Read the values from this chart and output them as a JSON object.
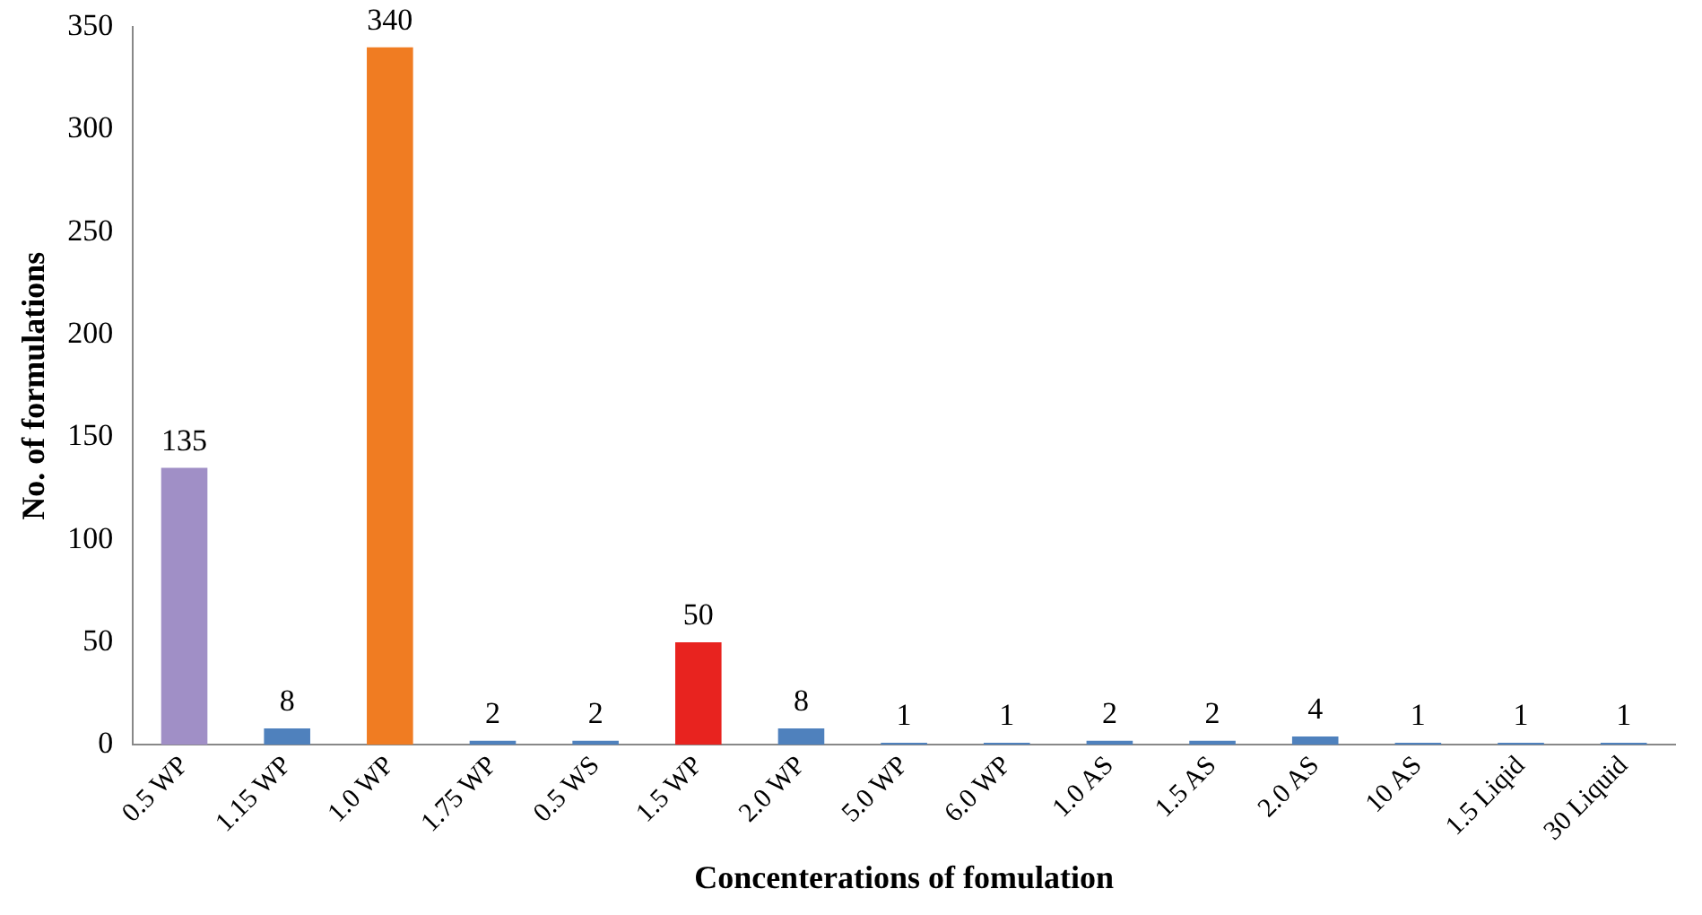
{
  "chart_data": {
    "type": "bar",
    "xlabel": "Concenterations of fomulation",
    "ylabel": "No. of formulations",
    "categories": [
      "0.5 WP",
      "1.15 WP",
      "1.0 WP",
      "1.75 WP",
      "0.5 WS",
      "1.5 WP",
      "2.0 WP",
      "5.0 WP",
      "6.0 WP",
      "1.0 AS",
      "1.5 AS",
      "2.0 AS",
      "10 AS",
      "1.5 Liqid",
      "30 Liquid"
    ],
    "values": [
      135,
      8,
      340,
      2,
      2,
      50,
      8,
      1,
      1,
      2,
      2,
      4,
      1,
      1,
      1
    ],
    "colors": [
      "#a08fc6",
      "#4f81bd",
      "#f07c22",
      "#4f81bd",
      "#4f81bd",
      "#e8231f",
      "#4f81bd",
      "#4f81bd",
      "#4f81bd",
      "#4f81bd",
      "#4f81bd",
      "#4f81bd",
      "#4f81bd",
      "#4f81bd",
      "#4f81bd"
    ],
    "ylim": [
      0,
      350
    ],
    "yticks": [
      0,
      50,
      100,
      150,
      200,
      250,
      300,
      350
    ],
    "grid": false,
    "legend": false,
    "data_labels": true
  }
}
